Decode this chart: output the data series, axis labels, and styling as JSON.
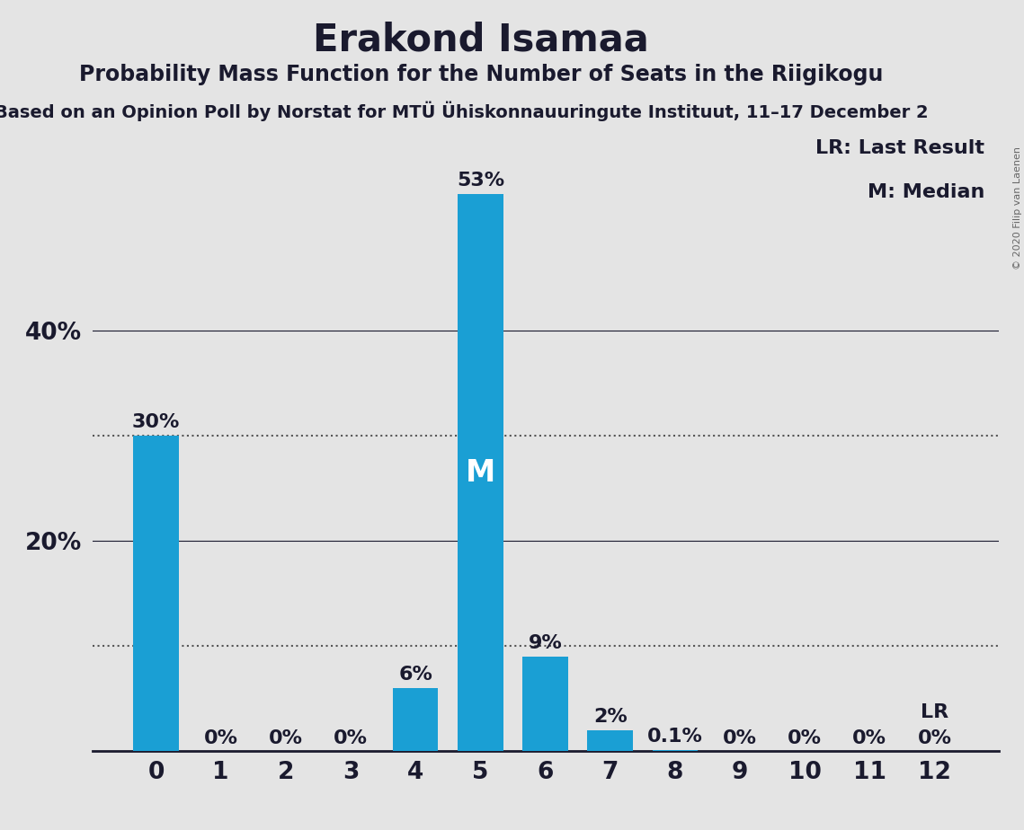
{
  "title": "Erakond Isamaa",
  "subtitle": "Probability Mass Function for the Number of Seats in the Riigikogu",
  "source": "Based on an Opinion Poll by Norstat for MTÜ Ühiskonnauuringute Instituut, 11–17 December 2",
  "copyright": "© 2020 Filip van Laenen",
  "categories": [
    0,
    1,
    2,
    3,
    4,
    5,
    6,
    7,
    8,
    9,
    10,
    11,
    12
  ],
  "values": [
    0.3,
    0.0,
    0.0,
    0.0,
    0.06,
    0.53,
    0.09,
    0.02,
    0.001,
    0.0,
    0.0,
    0.0,
    0.0
  ],
  "bar_labels": [
    "30%",
    "0%",
    "0%",
    "0%",
    "6%",
    "53%",
    "9%",
    "2%",
    "0.1%",
    "0%",
    "0%",
    "0%",
    "0%"
  ],
  "bar_color": "#1a9fd4",
  "background_color": "#e4e4e4",
  "median_seat": 5,
  "lr_seat": 12,
  "lr_label": "LR",
  "median_label": "M",
  "ylim": [
    0,
    0.6
  ],
  "yticks": [
    0.2,
    0.4
  ],
  "ytick_labels": [
    "20%",
    "40%"
  ],
  "solid_lines": [
    0.2,
    0.4
  ],
  "dotted_lines": [
    0.1,
    0.3
  ],
  "legend_text_lr": "LR: Last Result",
  "legend_text_m": "M: Median",
  "title_fontsize": 30,
  "subtitle_fontsize": 17,
  "source_fontsize": 14,
  "axis_fontsize": 19,
  "bar_label_fontsize": 16,
  "median_fontsize": 24
}
